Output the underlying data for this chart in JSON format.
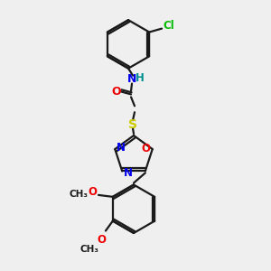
{
  "background_color": "#efefef",
  "bond_color": "#1a1a1a",
  "atom_colors": {
    "N": "#0000ee",
    "H": "#009090",
    "O": "#ee0000",
    "S": "#cccc00",
    "Cl": "#00bb00",
    "C": "#1a1a1a"
  },
  "figsize": [
    3.0,
    3.0
  ],
  "dpi": 100
}
